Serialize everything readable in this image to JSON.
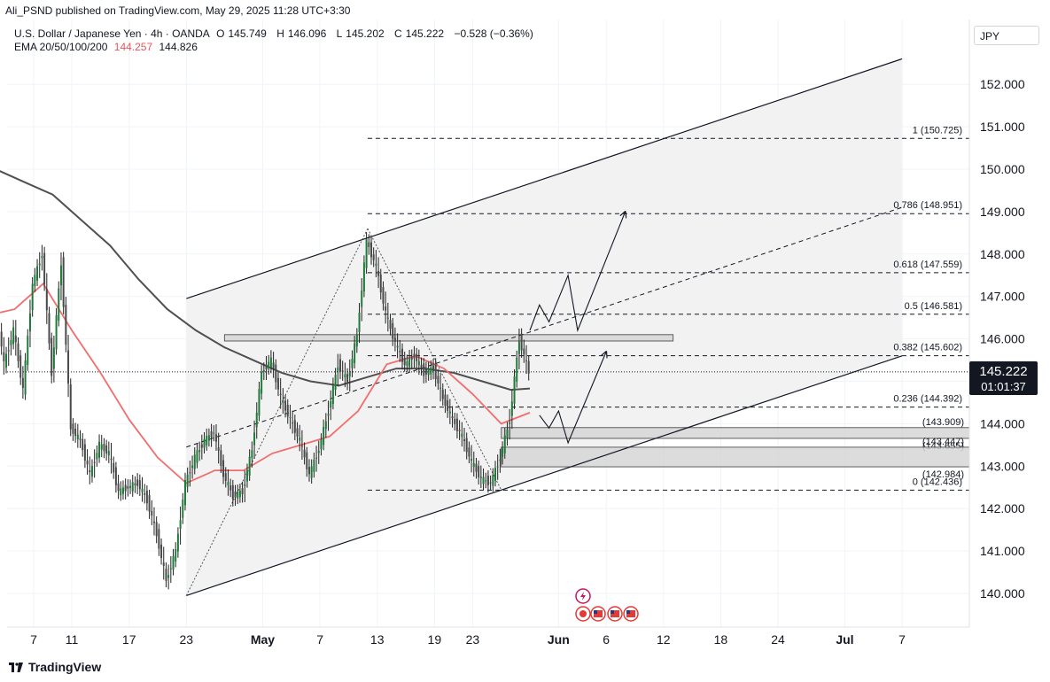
{
  "publisher": {
    "text": "Ali_PSND published on TradingView.com, May 29, 2025 11:28 UTC+3:30"
  },
  "symbol": {
    "name": "U.S. Dollar / Japanese Yen · 4h · OANDA",
    "open_label": "O",
    "open": "145.749",
    "high_label": "H",
    "high": "146.096",
    "low_label": "L",
    "low": "145.202",
    "close_label": "C",
    "close": "145.222",
    "change": "−0.528 (−0.36%)"
  },
  "ema": {
    "label": "EMA 20/50/100/200",
    "value_1": "144.257",
    "value_2": "144.826",
    "color_1": "#e8545d",
    "color_2": "#555555"
  },
  "currency": "JPY",
  "last_price": {
    "price": "145.222",
    "countdown": "01:01:37"
  },
  "brand": "TradingView",
  "colors": {
    "candle_up": "#1f7a3a",
    "candle_down": "#4a4a4a",
    "ema_fast": "#f26d6d",
    "ema_slow": "#505050",
    "channel_fill": "#f2f2f2",
    "zone_fill": "#d6d6d6"
  },
  "chart_data": {
    "type": "candlestick",
    "timeframe": "4h",
    "y_range": [
      139.3,
      153.0
    ],
    "y_ticks": [
      "140.000",
      "141.000",
      "142.000",
      "143.000",
      "144.000",
      "145.000",
      "146.000",
      "147.000",
      "148.000",
      "149.000",
      "150.000",
      "151.000",
      "152.000"
    ],
    "x_ticks": [
      {
        "label": "7",
        "date": "2025-04-07"
      },
      {
        "label": "11",
        "date": "2025-04-11"
      },
      {
        "label": "17",
        "date": "2025-04-17"
      },
      {
        "label": "23",
        "date": "2025-04-23"
      },
      {
        "label": "May",
        "date": "2025-05-01"
      },
      {
        "label": "7",
        "date": "2025-05-07"
      },
      {
        "label": "13",
        "date": "2025-05-13"
      },
      {
        "label": "19",
        "date": "2025-05-19"
      },
      {
        "label": "23",
        "date": "2025-05-23"
      },
      {
        "label": "Jun",
        "date": "2025-06-01"
      },
      {
        "label": "6",
        "date": "2025-06-06"
      },
      {
        "label": "12",
        "date": "2025-06-12"
      },
      {
        "label": "18",
        "date": "2025-06-18"
      },
      {
        "label": "24",
        "date": "2025-06-24"
      },
      {
        "label": "Jul",
        "date": "2025-07-01"
      },
      {
        "label": "7",
        "date": "2025-07-07"
      }
    ],
    "price_path": [
      {
        "date": "2025-04-03",
        "price": 147.0
      },
      {
        "date": "2025-04-04",
        "price": 145.4
      },
      {
        "date": "2025-04-05",
        "price": 146.2
      },
      {
        "date": "2025-04-06",
        "price": 144.8
      },
      {
        "date": "2025-04-07",
        "price": 147.3
      },
      {
        "date": "2025-04-08",
        "price": 148.0
      },
      {
        "date": "2025-04-09",
        "price": 145.2
      },
      {
        "date": "2025-04-10",
        "price": 147.8
      },
      {
        "date": "2025-04-11",
        "price": 143.9
      },
      {
        "date": "2025-04-12",
        "price": 143.6
      },
      {
        "date": "2025-04-13",
        "price": 142.8
      },
      {
        "date": "2025-04-14",
        "price": 143.5
      },
      {
        "date": "2025-04-15",
        "price": 143.3
      },
      {
        "date": "2025-04-16",
        "price": 142.4
      },
      {
        "date": "2025-04-17",
        "price": 142.5
      },
      {
        "date": "2025-04-18",
        "price": 142.6
      },
      {
        "date": "2025-04-19",
        "price": 142.2
      },
      {
        "date": "2025-04-20",
        "price": 141.4
      },
      {
        "date": "2025-04-21",
        "price": 140.3
      },
      {
        "date": "2025-04-22",
        "price": 141.0
      },
      {
        "date": "2025-04-23",
        "price": 142.6
      },
      {
        "date": "2025-04-24",
        "price": 143.2
      },
      {
        "date": "2025-04-25",
        "price": 143.6
      },
      {
        "date": "2025-04-26",
        "price": 143.8
      },
      {
        "date": "2025-04-27",
        "price": 142.8
      },
      {
        "date": "2025-04-28",
        "price": 142.3
      },
      {
        "date": "2025-04-29",
        "price": 142.4
      },
      {
        "date": "2025-04-30",
        "price": 143.4
      },
      {
        "date": "2025-05-01",
        "price": 145.2
      },
      {
        "date": "2025-05-02",
        "price": 145.5
      },
      {
        "date": "2025-05-03",
        "price": 144.6
      },
      {
        "date": "2025-05-05",
        "price": 143.6
      },
      {
        "date": "2025-05-06",
        "price": 142.8
      },
      {
        "date": "2025-05-07",
        "price": 143.4
      },
      {
        "date": "2025-05-08",
        "price": 144.3
      },
      {
        "date": "2025-05-09",
        "price": 145.4
      },
      {
        "date": "2025-05-10",
        "price": 145.0
      },
      {
        "date": "2025-05-11",
        "price": 146.1
      },
      {
        "date": "2025-05-12",
        "price": 148.3
      },
      {
        "date": "2025-05-13",
        "price": 147.7
      },
      {
        "date": "2025-05-14",
        "price": 146.6
      },
      {
        "date": "2025-05-15",
        "price": 145.9
      },
      {
        "date": "2025-05-16",
        "price": 145.4
      },
      {
        "date": "2025-05-17",
        "price": 145.6
      },
      {
        "date": "2025-05-18",
        "price": 145.2
      },
      {
        "date": "2025-05-19",
        "price": 145.3
      },
      {
        "date": "2025-05-20",
        "price": 144.6
      },
      {
        "date": "2025-05-21",
        "price": 144.1
      },
      {
        "date": "2025-05-22",
        "price": 143.7
      },
      {
        "date": "2025-05-23",
        "price": 143.1
      },
      {
        "date": "2025-05-24",
        "price": 142.7
      },
      {
        "date": "2025-05-25",
        "price": 142.6
      },
      {
        "date": "2025-05-26",
        "price": 143.2
      },
      {
        "date": "2025-05-27",
        "price": 144.1
      },
      {
        "date": "2025-05-28",
        "price": 146.0
      },
      {
        "date": "2025-05-29",
        "price": 145.22
      }
    ],
    "ema_fast_path": [
      {
        "date": "2025-04-03",
        "price": 146.6
      },
      {
        "date": "2025-04-05",
        "price": 146.7
      },
      {
        "date": "2025-04-08",
        "price": 147.3
      },
      {
        "date": "2025-04-11",
        "price": 146.2
      },
      {
        "date": "2025-04-14",
        "price": 145.2
      },
      {
        "date": "2025-04-17",
        "price": 144.1
      },
      {
        "date": "2025-04-20",
        "price": 143.2
      },
      {
        "date": "2025-04-23",
        "price": 142.6
      },
      {
        "date": "2025-04-26",
        "price": 142.9
      },
      {
        "date": "2025-04-29",
        "price": 142.9
      },
      {
        "date": "2025-05-02",
        "price": 143.3
      },
      {
        "date": "2025-05-05",
        "price": 143.5
      },
      {
        "date": "2025-05-08",
        "price": 143.7
      },
      {
        "date": "2025-05-11",
        "price": 144.3
      },
      {
        "date": "2025-05-14",
        "price": 145.4
      },
      {
        "date": "2025-05-17",
        "price": 145.6
      },
      {
        "date": "2025-05-20",
        "price": 145.3
      },
      {
        "date": "2025-05-23",
        "price": 144.7
      },
      {
        "date": "2025-05-26",
        "price": 144.0
      },
      {
        "date": "2025-05-29",
        "price": 144.26
      }
    ],
    "ema_slow_path": [
      {
        "date": "2025-04-03",
        "price": 150.0
      },
      {
        "date": "2025-04-06",
        "price": 149.7
      },
      {
        "date": "2025-04-09",
        "price": 149.4
      },
      {
        "date": "2025-04-12",
        "price": 148.8
      },
      {
        "date": "2025-04-15",
        "price": 148.2
      },
      {
        "date": "2025-04-18",
        "price": 147.4
      },
      {
        "date": "2025-04-21",
        "price": 146.7
      },
      {
        "date": "2025-04-24",
        "price": 146.2
      },
      {
        "date": "2025-04-27",
        "price": 145.8
      },
      {
        "date": "2025-04-30",
        "price": 145.5
      },
      {
        "date": "2025-05-03",
        "price": 145.2
      },
      {
        "date": "2025-05-06",
        "price": 145.0
      },
      {
        "date": "2025-05-09",
        "price": 144.9
      },
      {
        "date": "2025-05-12",
        "price": 145.1
      },
      {
        "date": "2025-05-15",
        "price": 145.3
      },
      {
        "date": "2025-05-18",
        "price": 145.3
      },
      {
        "date": "2025-05-21",
        "price": 145.2
      },
      {
        "date": "2025-05-24",
        "price": 145.0
      },
      {
        "date": "2025-05-27",
        "price": 144.8
      },
      {
        "date": "2025-05-29",
        "price": 144.83
      }
    ],
    "fib_levels": [
      {
        "label": "1 (150.725)",
        "price": 150.725
      },
      {
        "label": "0.786 (148.951)",
        "price": 148.951
      },
      {
        "label": "0.618 (147.559)",
        "price": 147.559
      },
      {
        "label": "0.5 (146.581)",
        "price": 146.581
      },
      {
        "label": "0.382 (145.602)",
        "price": 145.602
      },
      {
        "label": "0.236 (144.392)",
        "price": 144.392
      },
      {
        "label": "0 (142.436)",
        "price": 142.436
      }
    ],
    "zones": [
      {
        "labels": [
          "(143.909)",
          "(143.655)"
        ],
        "top": 143.909,
        "bottom": 143.655
      },
      {
        "labels": [
          "(143.447)",
          "(142.984)"
        ],
        "top": 143.447,
        "bottom": 142.984
      },
      {
        "labels": [],
        "top": 146.1,
        "bottom": 145.95
      }
    ],
    "channel": {
      "upper": [
        {
          "date": "2025-04-23",
          "price": 146.95
        },
        {
          "date": "2025-07-07",
          "price": 152.6
        }
      ],
      "lower": [
        {
          "date": "2025-04-23",
          "price": 139.95
        },
        {
          "date": "2025-07-07",
          "price": 145.6
        }
      ],
      "mid": [
        {
          "date": "2025-04-23",
          "price": 143.45
        },
        {
          "date": "2025-07-07",
          "price": 149.1
        }
      ]
    },
    "projections": [
      [
        {
          "date": "2025-05-29",
          "price": 146.2
        },
        {
          "date": "2025-05-30",
          "price": 146.8
        },
        {
          "date": "2025-05-31",
          "price": 146.4
        },
        {
          "date": "2025-06-02",
          "price": 147.5
        },
        {
          "date": "2025-06-03",
          "price": 146.2
        },
        {
          "date": "2025-06-08",
          "price": 149.0
        }
      ],
      [
        {
          "date": "2025-05-30",
          "price": 144.2
        },
        {
          "date": "2025-05-31",
          "price": 143.9
        },
        {
          "date": "2025-06-01",
          "price": 144.3
        },
        {
          "date": "2025-06-02",
          "price": 143.55
        },
        {
          "date": "2025-06-06",
          "price": 145.7
        }
      ]
    ]
  }
}
